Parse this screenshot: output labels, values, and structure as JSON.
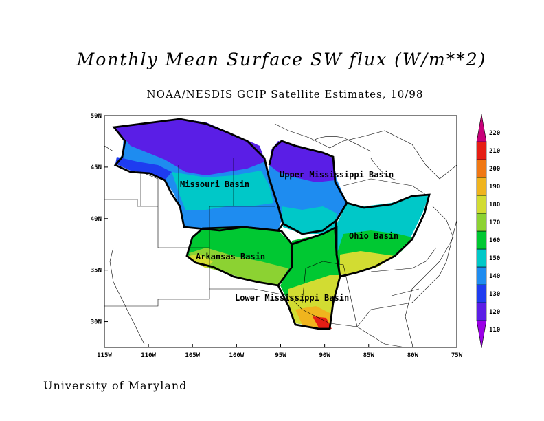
{
  "title": "Monthly Mean Surface SW flux (W/m**2)",
  "subtitle": "NOAA/NESDIS GCIP Satellite Estimates, 10/98",
  "footer": "University of Maryland",
  "map": {
    "lon_range": [
      -115,
      -75
    ],
    "lat_range": [
      27.5,
      50
    ],
    "x_ticks": [
      "115W",
      "110W",
      "105W",
      "100W",
      "95W",
      "90W",
      "85W",
      "80W",
      "75W"
    ],
    "y_ticks": [
      "30N",
      "35N",
      "40N",
      "45N",
      "50N"
    ],
    "basins": [
      {
        "name": "Missouri Basin"
      },
      {
        "name": "Upper Mississippi Basin"
      },
      {
        "name": "Ohio Basin"
      },
      {
        "name": "Arkansas Basin"
      },
      {
        "name": "Lower Mississippi Basin"
      }
    ]
  },
  "colorbar": {
    "levels": [
      "110",
      "120",
      "130",
      "140",
      "150",
      "160",
      "170",
      "180",
      "190",
      "200",
      "210",
      "220"
    ],
    "colors": [
      "#9b00e6",
      "#5a1ee6",
      "#1e3cf0",
      "#1e8cf0",
      "#00c8c8",
      "#00c832",
      "#8cd232",
      "#d2dc32",
      "#f0b41e",
      "#f07814",
      "#e61e14",
      "#c8007a"
    ]
  }
}
